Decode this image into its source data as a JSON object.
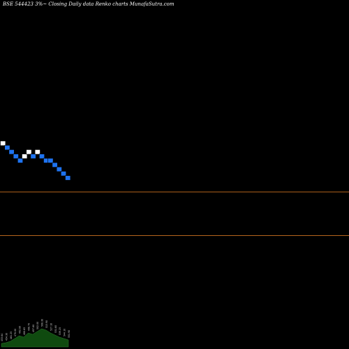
{
  "title": "BSE 544423 3%~ Closing Daily data Renko charts MunafaSutra.com",
  "chart_data": {
    "type": "renko",
    "title": "BSE 544423 3%~ Closing Daily data Renko charts MunafaSutra.com",
    "x_range": [
      0,
      40
    ],
    "y_range": [
      0,
      40
    ],
    "reference_lines": [
      {
        "value": 18,
        "color": "#b5651d"
      },
      {
        "value": 13,
        "color": "#b5651d"
      }
    ],
    "bricks": [
      {
        "index": 0,
        "level": 15.5,
        "direction": "up"
      },
      {
        "index": 1,
        "level": 16.5,
        "direction": "down"
      },
      {
        "index": 2,
        "level": 17.5,
        "direction": "down"
      },
      {
        "index": 3,
        "level": 18.5,
        "direction": "down"
      },
      {
        "index": 4,
        "level": 19.5,
        "direction": "down"
      },
      {
        "index": 5,
        "level": 18.5,
        "direction": "up"
      },
      {
        "index": 6,
        "level": 17.5,
        "direction": "up"
      },
      {
        "index": 7,
        "level": 18.5,
        "direction": "down"
      },
      {
        "index": 8,
        "level": 17.5,
        "direction": "up"
      },
      {
        "index": 9,
        "level": 18.5,
        "direction": "down"
      },
      {
        "index": 10,
        "level": 19.5,
        "direction": "down"
      },
      {
        "index": 11,
        "level": 19.5,
        "direction": "down"
      },
      {
        "index": 12,
        "level": 20.5,
        "direction": "down"
      },
      {
        "index": 13,
        "level": 21.5,
        "direction": "down"
      },
      {
        "index": 14,
        "level": 22.5,
        "direction": "down"
      },
      {
        "index": 15,
        "level": 23.5,
        "direction": "down"
      }
    ],
    "colors": {
      "up": "#ffffff",
      "down": "#1e73f0",
      "border": "#000000",
      "volume": "#0f4a0f"
    },
    "volume": [
      5,
      6,
      8,
      12,
      16,
      14,
      20,
      18,
      22,
      26,
      24,
      20,
      17,
      14,
      12,
      10
    ],
    "volume_labels": [
      "453.64",
      "454.30",
      "461.25",
      "478.00",
      "492.80",
      "488.65",
      "498.70",
      "497.60",
      "502.00",
      "508.30",
      "513.90",
      "527.10",
      "531.60",
      "539.25",
      "544.10",
      "551.90"
    ]
  }
}
